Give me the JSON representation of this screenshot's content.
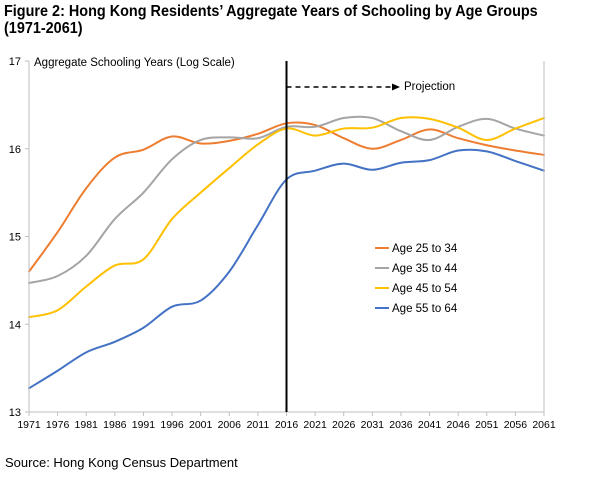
{
  "figure_title_line1": "Figure 2:   Hong Kong Residents’ Aggregate Years of Schooling by Age Groups",
  "figure_title_line2": "(1971-2061)",
  "source": "Source: Hong Kong Census Department",
  "projection_label": "Projection",
  "chart_data": {
    "type": "line",
    "ylabel": "Aggregate Schooling Years (Log Scale)",
    "ylim": [
      13,
      17
    ],
    "y_ticks": [
      13,
      14,
      15,
      16,
      17
    ],
    "x_ticks": [
      "1971",
      "1976",
      "1981",
      "1986",
      "1991",
      "1996",
      "2001",
      "2006",
      "2011",
      "2016",
      "2021",
      "2026",
      "2031",
      "2036",
      "2041",
      "2046",
      "2051",
      "2056",
      "2061"
    ],
    "projection_start": 2016,
    "legend_position": "center-right",
    "grid": false,
    "series": [
      {
        "name": "Age 25 to 34",
        "color": "#ED7D31",
        "x": [
          1971,
          1976,
          1981,
          1986,
          1991,
          1996,
          2001,
          2006,
          2011,
          2016,
          2021,
          2026,
          2031,
          2036,
          2041,
          2046,
          2051,
          2056,
          2061
        ],
        "y": [
          14.6,
          15.05,
          15.55,
          15.9,
          15.99,
          16.14,
          16.06,
          16.09,
          16.17,
          16.29,
          16.27,
          16.12,
          16.0,
          16.1,
          16.22,
          16.12,
          16.04,
          15.98,
          15.93
        ]
      },
      {
        "name": "Age 35 to 44",
        "color": "#A5A5A5",
        "x": [
          1971,
          1976,
          1981,
          1986,
          1991,
          1996,
          2001,
          2006,
          2011,
          2016,
          2021,
          2026,
          2031,
          2036,
          2041,
          2046,
          2051,
          2056,
          2061
        ],
        "y": [
          14.47,
          14.55,
          14.78,
          15.2,
          15.5,
          15.88,
          16.1,
          16.13,
          16.12,
          16.25,
          16.25,
          16.35,
          16.35,
          16.2,
          16.1,
          16.25,
          16.34,
          16.23,
          16.15
        ]
      },
      {
        "name": "Age 45 to 54",
        "color": "#FFC000",
        "x": [
          1971,
          1976,
          1981,
          1986,
          1991,
          1996,
          2001,
          2006,
          2011,
          2016,
          2021,
          2026,
          2031,
          2036,
          2041,
          2046,
          2051,
          2056,
          2061
        ],
        "y": [
          14.08,
          14.16,
          14.43,
          14.67,
          14.74,
          15.2,
          15.5,
          15.78,
          16.05,
          16.23,
          16.15,
          16.23,
          16.24,
          16.35,
          16.34,
          16.24,
          16.1,
          16.23,
          16.35
        ]
      },
      {
        "name": "Age 55 to 64",
        "color": "#4472C4",
        "x": [
          1971,
          1976,
          1981,
          1986,
          1991,
          1996,
          2001,
          2006,
          2011,
          2016,
          2021,
          2026,
          2031,
          2036,
          2041,
          2046,
          2051,
          2056,
          2061
        ],
        "y": [
          13.27,
          13.47,
          13.68,
          13.8,
          13.96,
          14.2,
          14.27,
          14.6,
          15.13,
          15.65,
          15.75,
          15.83,
          15.76,
          15.84,
          15.87,
          15.98,
          15.97,
          15.86,
          15.75
        ]
      }
    ]
  }
}
